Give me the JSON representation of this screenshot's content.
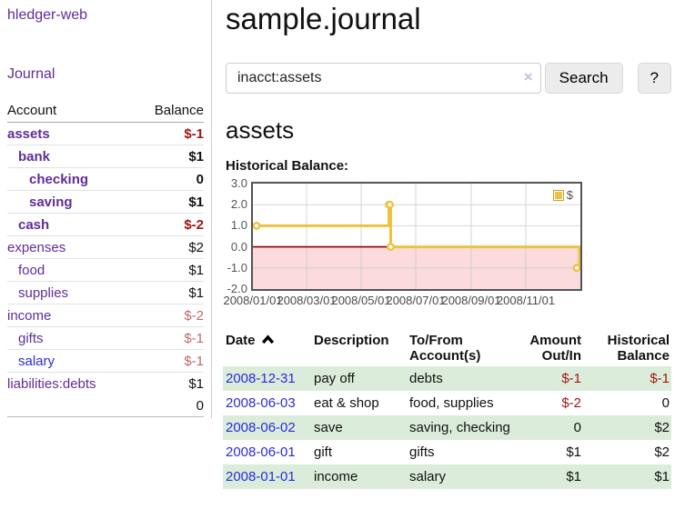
{
  "sidebar": {
    "app_title": "hledger-web",
    "nav_journal": "Journal",
    "col_account": "Account",
    "col_balance": "Balance",
    "accounts": [
      {
        "name": "assets",
        "indent": 0,
        "bold": true,
        "balance": "$-1",
        "balance_style": "neg"
      },
      {
        "name": "bank",
        "indent": 1,
        "bold": true,
        "balance": "$1",
        "balance_style": "normal"
      },
      {
        "name": "checking",
        "indent": 2,
        "bold": true,
        "balance": "0",
        "balance_style": "normal"
      },
      {
        "name": "saving",
        "indent": 2,
        "bold": true,
        "balance": "$1",
        "balance_style": "normal"
      },
      {
        "name": "cash",
        "indent": 1,
        "bold": true,
        "balance": "$-2",
        "balance_style": "neg"
      },
      {
        "name": "expenses",
        "indent": 0,
        "bold": false,
        "balance": "$2",
        "balance_style": "normal"
      },
      {
        "name": "food",
        "indent": 1,
        "bold": false,
        "balance": "$1",
        "balance_style": "normal"
      },
      {
        "name": "supplies",
        "indent": 1,
        "bold": false,
        "balance": "$1",
        "balance_style": "normal"
      },
      {
        "name": "income",
        "indent": 0,
        "bold": false,
        "balance": "$-2",
        "balance_style": "negmuted"
      },
      {
        "name": "gifts",
        "indent": 1,
        "bold": false,
        "balance": "$-1",
        "balance_style": "negmuted"
      },
      {
        "name": "salary",
        "indent": 1,
        "bold": false,
        "blue": true,
        "balance": "$-1",
        "balance_style": "negmuted"
      },
      {
        "name": "liabilities:debts",
        "indent": 0,
        "bold": false,
        "balance": "$1",
        "balance_style": "normal"
      }
    ],
    "total": "0"
  },
  "main": {
    "title": "sample.journal",
    "search": {
      "value": "inacct:assets",
      "clear_label": "×",
      "button_label": "Search",
      "help_label": "?"
    },
    "account_heading": "assets",
    "chart_label": "Historical Balance:"
  },
  "chart_data": {
    "type": "line",
    "title": "Historical Balance",
    "step": true,
    "series": [
      {
        "name": "$",
        "color": "#edc240",
        "points": [
          [
            "2008-01-01",
            1
          ],
          [
            "2008-06-01",
            2
          ],
          [
            "2008-06-02",
            2
          ],
          [
            "2008-06-03",
            0
          ],
          [
            "2008-12-31",
            -1
          ]
        ]
      }
    ],
    "ylim": [
      -2,
      3
    ],
    "y_ticks": [
      "3.0",
      "2.0",
      "1.0",
      "0.0",
      "-1.0",
      "-2.0"
    ],
    "x_ticks": [
      "2008/01/01",
      "2008/03/01",
      "2008/05/01",
      "2008/07/01",
      "2008/09/01",
      "2008/11/01"
    ],
    "x_range": [
      "2008-01-01",
      "2009-01-01"
    ],
    "legend": {
      "label": "$",
      "position": "top-right"
    },
    "grid": true,
    "negative_region_color": "#fbdbdb",
    "zero_line_color": "#8b0000",
    "line_color": "#edc240"
  },
  "register": {
    "headers": {
      "date": "Date",
      "description": "Description",
      "accounts": "To/From Account(s)",
      "amount": "Amount Out/In",
      "balance": "Historical Balance"
    },
    "sort": "date-ascending",
    "rows": [
      {
        "date": "2008-12-31",
        "description": "pay off",
        "accounts": "debts",
        "amount": "$-1",
        "amount_neg": true,
        "balance": "$-1",
        "balance_neg": true
      },
      {
        "date": "2008-06-03",
        "description": "eat & shop",
        "accounts": "food, supplies",
        "amount": "$-2",
        "amount_neg": true,
        "balance": "0",
        "balance_neg": false
      },
      {
        "date": "2008-06-02",
        "description": "save",
        "accounts": "saving, checking",
        "amount": "0",
        "amount_neg": false,
        "balance": "$2",
        "balance_neg": false
      },
      {
        "date": "2008-06-01",
        "description": "gift",
        "accounts": "gifts",
        "amount": "$1",
        "amount_neg": false,
        "balance": "$2",
        "balance_neg": false
      },
      {
        "date": "2008-01-01",
        "description": "income",
        "accounts": "salary",
        "amount": "$1",
        "amount_neg": false,
        "balance": "$1",
        "balance_neg": false
      }
    ]
  },
  "colors": {
    "link_purple": "#5f2d9a",
    "link_blue": "#2b2bdb",
    "negative_bold": "#a31515",
    "negative_muted": "#bd6a6a",
    "row_stripe_green": "#dcecdb",
    "chart_line_gold": "#edc240",
    "chart_negative_pink": "#fbdbdb",
    "chart_zero_line": "#8b0000"
  }
}
